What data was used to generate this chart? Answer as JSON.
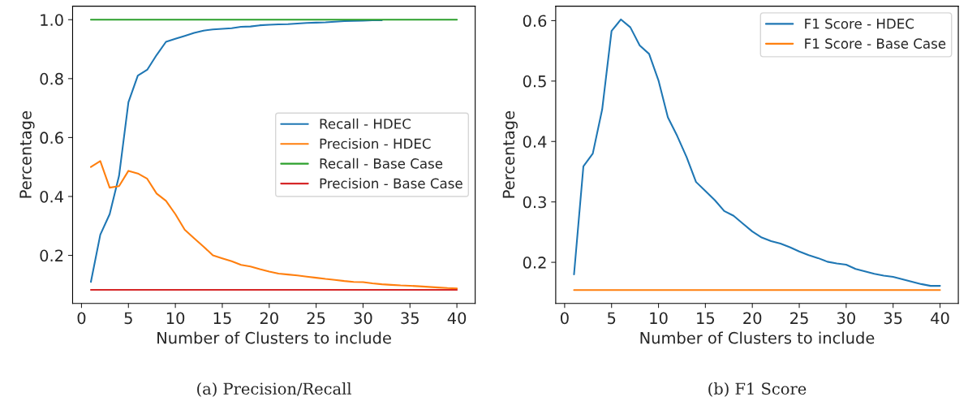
{
  "chart_data": [
    {
      "type": "line",
      "xlabel": "Number of Clusters to include",
      "ylabel": "Percentage",
      "annotations": [
        "(a) Precision/Recall"
      ],
      "x": [
        1,
        2,
        3,
        4,
        5,
        6,
        7,
        8,
        9,
        10,
        11,
        12,
        13,
        14,
        15,
        16,
        17,
        18,
        19,
        20,
        21,
        22,
        23,
        24,
        25,
        26,
        27,
        28,
        29,
        30,
        31,
        32,
        33,
        34,
        35,
        36,
        37,
        38,
        39,
        40
      ],
      "series": [
        {
          "name": "Recall - HDEC",
          "color": "#1f77b4",
          "values": [
            0.11,
            0.27,
            0.34,
            0.47,
            0.72,
            0.81,
            0.83,
            0.88,
            0.925,
            0.935,
            0.945,
            0.955,
            0.963,
            0.967,
            0.969,
            0.971,
            0.976,
            0.977,
            0.981,
            0.983,
            0.984,
            0.985,
            0.987,
            0.989,
            0.99,
            0.991,
            0.993,
            0.995,
            0.996,
            0.997,
            0.998,
            0.998,
            null,
            null,
            null,
            null,
            null,
            null,
            null,
            null
          ]
        },
        {
          "name": "Precision - HDEC",
          "color": "#ff7f0e",
          "values": [
            0.5,
            0.52,
            0.43,
            0.435,
            0.487,
            0.478,
            0.46,
            0.41,
            0.385,
            0.34,
            0.287,
            0.258,
            0.23,
            0.2,
            0.19,
            0.18,
            0.168,
            0.162,
            0.153,
            0.145,
            0.138,
            0.135,
            0.132,
            0.128,
            0.124,
            0.12,
            0.117,
            0.113,
            0.11,
            0.109,
            0.105,
            0.102,
            0.1,
            0.098,
            0.097,
            0.095,
            0.093,
            0.091,
            0.089,
            0.088
          ]
        },
        {
          "name": "Recall - Base Case",
          "color": "#2ca02c",
          "values": [
            1.0,
            1.0,
            1.0,
            1.0,
            1.0,
            1.0,
            1.0,
            1.0,
            1.0,
            1.0,
            1.0,
            1.0,
            1.0,
            1.0,
            1.0,
            1.0,
            1.0,
            1.0,
            1.0,
            1.0,
            1.0,
            1.0,
            1.0,
            1.0,
            1.0,
            1.0,
            1.0,
            1.0,
            1.0,
            1.0,
            1.0,
            1.0,
            1.0,
            1.0,
            1.0,
            1.0,
            1.0,
            1.0,
            1.0,
            1.0
          ]
        },
        {
          "name": "Precision - Base Case",
          "color": "#d62728",
          "values": [
            0.083,
            0.083,
            0.083,
            0.083,
            0.083,
            0.083,
            0.083,
            0.083,
            0.083,
            0.083,
            0.083,
            0.083,
            0.083,
            0.083,
            0.083,
            0.083,
            0.083,
            0.083,
            0.083,
            0.083,
            0.083,
            0.083,
            0.083,
            0.083,
            0.083,
            0.083,
            0.083,
            0.083,
            0.083,
            0.083,
            0.083,
            0.083,
            0.083,
            0.083,
            0.083,
            0.083,
            0.083,
            0.083,
            0.083,
            0.083
          ]
        }
      ],
      "xlim": [
        -0.95,
        41.95
      ],
      "xticks": [
        0,
        5,
        10,
        15,
        20,
        25,
        30,
        35,
        40
      ],
      "ylim": [
        0.037,
        1.046
      ],
      "yticks": [
        0.2,
        0.4,
        0.6,
        0.8,
        {
          "value": 1.0,
          "label": "1.0"
        }
      ],
      "legend": "right",
      "grid": false
    },
    {
      "type": "line",
      "xlabel": "Number of Clusters to include",
      "ylabel": "Percentage",
      "annotations": [
        "(b) F1 Score"
      ],
      "x": [
        1,
        2,
        3,
        4,
        5,
        6,
        7,
        8,
        9,
        10,
        11,
        12,
        13,
        14,
        15,
        16,
        17,
        18,
        19,
        20,
        21,
        22,
        23,
        24,
        25,
        26,
        27,
        28,
        29,
        30,
        31,
        32,
        33,
        34,
        35,
        36,
        37,
        38,
        39,
        40
      ],
      "series": [
        {
          "name": "F1 Score - HDEC",
          "color": "#1f77b4",
          "values": [
            0.18,
            0.359,
            0.38,
            0.453,
            0.583,
            0.602,
            0.589,
            0.559,
            0.545,
            0.501,
            0.44,
            0.409,
            0.374,
            0.333,
            0.318,
            0.303,
            0.285,
            0.277,
            0.264,
            0.251,
            0.241,
            0.235,
            0.231,
            0.225,
            0.218,
            0.212,
            0.207,
            0.201,
            0.198,
            0.196,
            0.189,
            0.185,
            0.181,
            0.178,
            0.176,
            0.172,
            0.168,
            0.164,
            0.161,
            0.161
          ]
        },
        {
          "name": "F1 Score - Base Case",
          "color": "#ff7f0e",
          "values": [
            0.154,
            0.154,
            0.154,
            0.154,
            0.154,
            0.154,
            0.154,
            0.154,
            0.154,
            0.154,
            0.154,
            0.154,
            0.154,
            0.154,
            0.154,
            0.154,
            0.154,
            0.154,
            0.154,
            0.154,
            0.154,
            0.154,
            0.154,
            0.154,
            0.154,
            0.154,
            0.154,
            0.154,
            0.154,
            0.154,
            0.154,
            0.154,
            0.154,
            0.154,
            0.154,
            0.154,
            0.154,
            0.154,
            0.154,
            0.154
          ]
        }
      ],
      "xlim": [
        -0.95,
        41.95
      ],
      "xticks": [
        0,
        5,
        10,
        15,
        20,
        25,
        30,
        35,
        40
      ],
      "ylim": [
        0.132,
        0.624
      ],
      "yticks": [
        0.2,
        0.3,
        0.4,
        0.5,
        0.6
      ],
      "legend": "top right",
      "grid": false
    }
  ]
}
